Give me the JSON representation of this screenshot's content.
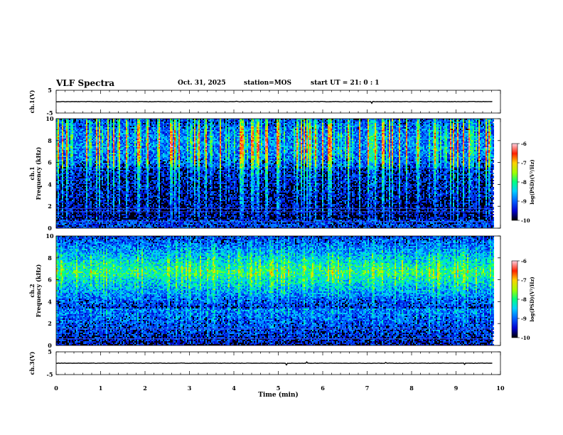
{
  "header": {
    "title": "VLF Spectra",
    "date": "Oct. 31, 2025",
    "station": "station=MOS",
    "start": "start  UT =  21: 0  : 1"
  },
  "chart_data": [
    {
      "type": "line",
      "name": "ch1-waveform",
      "ylabel": "ch.1(V)",
      "ylim": [
        -5,
        5
      ],
      "yticks": [
        "5",
        "-5"
      ],
      "xlim": [
        0,
        10
      ],
      "level": 0,
      "x_end": 9.83
    },
    {
      "type": "heatmap",
      "name": "ch1-spectrogram",
      "ylabel": "ch.1\nFrequency (kHz)",
      "ylim": [
        0,
        10
      ],
      "yticks": [
        "0",
        "2",
        "4",
        "6",
        "8",
        "10"
      ],
      "xlim": [
        0,
        10
      ],
      "x_end": 9.83,
      "colorbar": {
        "label": "log(PSD)(V²/Hz)",
        "range": [
          -10,
          -6
        ],
        "ticks": [
          "-6",
          "-7",
          "-8",
          "-9",
          "-10"
        ]
      }
    },
    {
      "type": "heatmap",
      "name": "ch2-spectrogram",
      "ylabel": "ch.2\nFrequency (kHz)",
      "ylim": [
        0,
        10
      ],
      "yticks": [
        "0",
        "2",
        "4",
        "6",
        "8",
        "10"
      ],
      "xlim": [
        0,
        10
      ],
      "x_end": 9.83,
      "colorbar": {
        "label": "log(PSD)(V²/Hz)",
        "range": [
          -10,
          -6
        ],
        "ticks": [
          "-6",
          "-7",
          "-8",
          "-9",
          "-10"
        ]
      }
    },
    {
      "type": "line",
      "name": "ch3-waveform",
      "ylabel": "ch.3(V)",
      "ylim": [
        -5,
        5
      ],
      "yticks": [
        "5",
        "-5"
      ],
      "xlim": [
        0,
        10
      ],
      "level": 0,
      "x_end": 9.83
    }
  ],
  "xaxis": {
    "label": "Time (min)",
    "ticks": [
      "0",
      "1",
      "2",
      "3",
      "4",
      "5",
      "6",
      "7",
      "8",
      "9",
      "10"
    ]
  }
}
